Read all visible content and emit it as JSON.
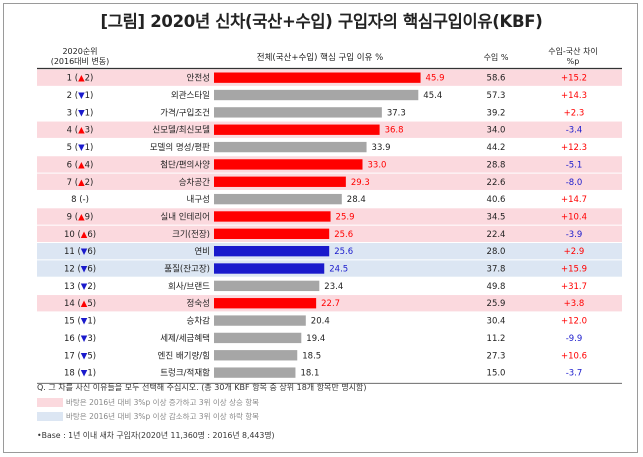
{
  "title": "[그림] 2020년 신차(국산+수입) 구입자의 핵심구입이유(KBF)",
  "headers": {
    "rank": "2020순위",
    "rank_sub": "(2016대비 변동)",
    "total": "전체(국산+수입) 핵심 구입 이유 %",
    "import": "수입 %",
    "diff": "수입-국산 차이",
    "diff_unit": "%p"
  },
  "chart_data": {
    "type": "bar",
    "title": "[그림] 2020년 신차(국산+수입) 구입자의 핵심구입이유(KBF)",
    "xlabel": "",
    "ylabel": "",
    "xlim": [
      0,
      50
    ],
    "grid": false,
    "categories": [
      "안전성",
      "외관스타일",
      "가격/구입조건",
      "신모델/최신모델",
      "모델의 명성/평판",
      "첨단/편의사양",
      "승차공간",
      "내구성",
      "실내 인테리어",
      "크기(전장)",
      "연비",
      "품질(잔고장)",
      "회사/브랜드",
      "정숙성",
      "승차감",
      "세제/세금혜택",
      "엔진 배기량/힘",
      "트렁크/적재함"
    ],
    "ranks": [
      "1 (▲2)",
      "2 (▼1)",
      "3 (▼1)",
      "4 (▲3)",
      "5 (▼1)",
      "6 (▲4)",
      "7 (▲2)",
      "8 (–)",
      "9 (▲9)",
      "10 (▲6)",
      "11 (▼6)",
      "12 (▼6)",
      "13 (▼2)",
      "14 (▲5)",
      "15 (▼1)",
      "16 (▼3)",
      "17 (▼5)",
      "18 (▼1)"
    ],
    "rank_numbers": [
      "1",
      "2",
      "3",
      "4",
      "5",
      "6",
      "7",
      "8",
      "9",
      "10",
      "11",
      "12",
      "13",
      "14",
      "15",
      "16",
      "17",
      "18"
    ],
    "rank_arrows": [
      "▲",
      "▼",
      "▼",
      "▲",
      "▼",
      "▲",
      "▲",
      "",
      "▲",
      "▲",
      "▼",
      "▼",
      "▼",
      "▲",
      "▼",
      "▼",
      "▼",
      "▼"
    ],
    "rank_changes": [
      "2",
      "1",
      "1",
      "3",
      "1",
      "4",
      "2",
      "-",
      "9",
      "6",
      "6",
      "6",
      "2",
      "5",
      "1",
      "3",
      "5",
      "1"
    ],
    "values": [
      45.9,
      45.4,
      37.3,
      36.8,
      33.9,
      33.0,
      29.3,
      28.4,
      25.9,
      25.6,
      25.6,
      24.5,
      23.4,
      22.7,
      20.4,
      19.4,
      18.5,
      18.1
    ],
    "value_labels": [
      "45.9",
      "45.4",
      "37.3",
      "36.8",
      "33.9",
      "33.0",
      "29.3",
      "28.4",
      "25.9",
      "25.6",
      "25.6",
      "24.5",
      "23.4",
      "22.7",
      "20.4",
      "19.4",
      "18.5",
      "18.1"
    ],
    "import_values": [
      "58.6",
      "57.3",
      "39.2",
      "34.0",
      "44.2",
      "28.8",
      "22.6",
      "40.6",
      "34.5",
      "22.4",
      "28.0",
      "37.8",
      "49.8",
      "25.9",
      "30.4",
      "11.2",
      "27.3",
      "15.0"
    ],
    "diff_values": [
      "+15.2",
      "+14.3",
      "+2.3",
      "-3.4",
      "+12.3",
      "-5.1",
      "-8.0",
      "+14.7",
      "+10.4",
      "-3.9",
      "+2.9",
      "+15.9",
      "+31.7",
      "+3.8",
      "+12.0",
      "-9.9",
      "+10.6",
      "-3.7"
    ],
    "highlight": [
      "up",
      "none",
      "none",
      "up",
      "none",
      "up",
      "up",
      "none",
      "up",
      "up",
      "down",
      "down",
      "none",
      "up",
      "none",
      "none",
      "none",
      "none"
    ]
  },
  "colors": {
    "bar_up": "#ff0000",
    "bar_down": "#1a1acc",
    "bar_normal": "#a6a6a6",
    "band_up": "#fbd9de",
    "band_down": "#dce6f3",
    "arrow_up": "#ff0000",
    "arrow_down": "#1a1acc",
    "diff_pos": "#ff0000",
    "diff_neg": "#1a1acc"
  },
  "footer": {
    "question": "Q. 그 차를 사신 이유들을 모두 선택해 주십시오. (총 30개 KBF 항목 중 상위 18개 항목만 명시함)",
    "legend_up": "바탕은 2016년 대비 3%p 이상 증가하고 3위 이상 상승 항목",
    "legend_down": "바탕은 2016년 대비 3%p 이상 감소하고 3위 이상 하락 항목",
    "base": "•Base : 1년 이내 새차 구입자(2020년 11,360명 : 2016년 8,443명)"
  }
}
